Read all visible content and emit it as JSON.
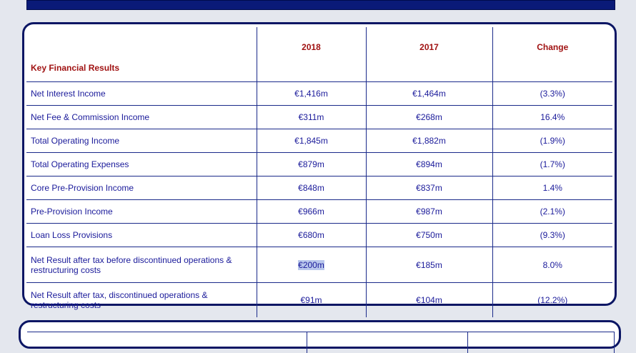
{
  "table": {
    "headers": {
      "label": "Key Financial Results",
      "y2018": "2018",
      "y2017": "2017",
      "change": "Change"
    },
    "rows": [
      {
        "label": "Net Interest Income",
        "y2018": "€1,416m",
        "y2017": "€1,464m",
        "change": "(3.3%)"
      },
      {
        "label": "Net Fee & Commission Income",
        "y2018": "€311m",
        "y2017": "€268m",
        "change": "16.4%"
      },
      {
        "label": "Total Operating Income",
        "y2018": "€1,845m",
        "y2017": "€1,882m",
        "change": "(1.9%)"
      },
      {
        "label": "Total Operating Expenses",
        "y2018": "€879m",
        "y2017": "€894m",
        "change": "(1.7%)"
      },
      {
        "label": "Core Pre-Provision Income",
        "y2018": "€848m",
        "y2017": "€837m",
        "change": "1.4%"
      },
      {
        "label": "Pre-Provision Income",
        "y2018": "€966m",
        "y2017": "€987m",
        "change": "(2.1%)"
      },
      {
        "label": "Loan Loss Provisions",
        "y2018": "€680m",
        "y2017": "€750m",
        "change": "(9.3%)"
      },
      {
        "label": "Net Result after tax before discontinued operations & restructuring costs",
        "y2018": "€200m",
        "y2017": "€185m",
        "change": "8.0%"
      },
      {
        "label": "Net Result after tax, discontinued operations & restructuring costs",
        "y2018": "€91m",
        "y2017": "€104m",
        "change": "(12.2%)"
      }
    ]
  },
  "colors": {
    "banner": "#0a1a78",
    "border": "#0b1664",
    "text": "#1a1a9a",
    "header_text": "#a01212",
    "selection": "#b9c7ec"
  }
}
